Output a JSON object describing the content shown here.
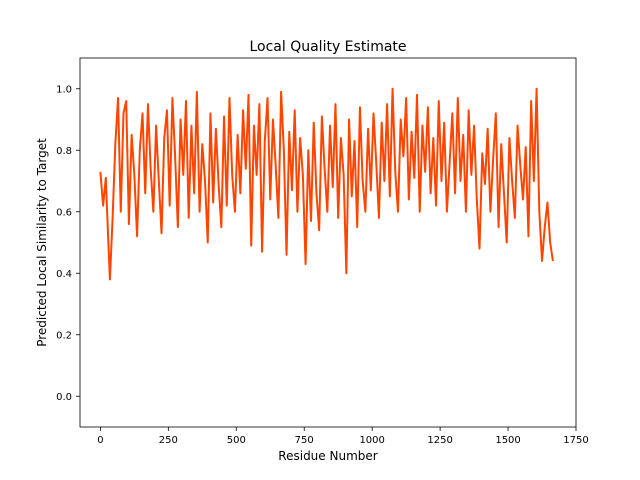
{
  "chart_data": {
    "type": "line",
    "title": "Local Quality Estimate",
    "xlabel": "Residue Number",
    "ylabel": "Predicted Local Similarity to Target",
    "xlim": [
      -75,
      1750
    ],
    "ylim": [
      -0.1,
      1.1
    ],
    "xticks": [
      0,
      250,
      500,
      750,
      1000,
      1250,
      1500,
      1750
    ],
    "xtick_labels": [
      "0",
      "250",
      "500",
      "750",
      "1000",
      "1250",
      "1500",
      "1750"
    ],
    "yticks": [
      0.0,
      0.2,
      0.4,
      0.6,
      0.8,
      1.0
    ],
    "ytick_labels": [
      "0.0",
      "0.2",
      "0.4",
      "0.6",
      "0.8",
      "1.0"
    ],
    "grid": false,
    "legend": "none",
    "color": "#ff4500",
    "series": [
      {
        "x": [
          0,
          10,
          20,
          28,
          35,
          45,
          55,
          65,
          75,
          85,
          95,
          105,
          115,
          125,
          135,
          145,
          155,
          165,
          175,
          185,
          195,
          205,
          215,
          225,
          235,
          245,
          255,
          265,
          275,
          285,
          295,
          305,
          315,
          325,
          335,
          345,
          355,
          365,
          375,
          385,
          395,
          405,
          415,
          425,
          435,
          445,
          455,
          465,
          475,
          485,
          495,
          505,
          515,
          525,
          535,
          545,
          555,
          565,
          575,
          585,
          595,
          605,
          615,
          625,
          635,
          645,
          655,
          665,
          675,
          685,
          695,
          705,
          715,
          725,
          735,
          745,
          755,
          765,
          775,
          785,
          795,
          805,
          815,
          825,
          835,
          845,
          855,
          865,
          875,
          885,
          895,
          905,
          915,
          925,
          935,
          945,
          955,
          965,
          975,
          985,
          995,
          1005,
          1015,
          1025,
          1035,
          1045,
          1055,
          1065,
          1075,
          1085,
          1095,
          1105,
          1115,
          1125,
          1135,
          1145,
          1155,
          1165,
          1175,
          1185,
          1195,
          1205,
          1215,
          1225,
          1235,
          1245,
          1255,
          1265,
          1275,
          1285,
          1295,
          1305,
          1315,
          1325,
          1335,
          1345,
          1355,
          1365,
          1375,
          1385,
          1395,
          1405,
          1415,
          1425,
          1435,
          1445,
          1455,
          1465,
          1475,
          1485,
          1495,
          1505,
          1515,
          1525,
          1535,
          1545,
          1555,
          1565,
          1575,
          1585,
          1595,
          1605,
          1615,
          1625,
          1635,
          1645,
          1655,
          1665
        ],
        "y": [
          0.73,
          0.62,
          0.71,
          0.53,
          0.38,
          0.58,
          0.82,
          0.97,
          0.6,
          0.92,
          0.96,
          0.56,
          0.85,
          0.72,
          0.52,
          0.8,
          0.92,
          0.66,
          0.95,
          0.74,
          0.6,
          0.88,
          0.7,
          0.53,
          0.84,
          0.93,
          0.62,
          0.97,
          0.78,
          0.55,
          0.9,
          0.72,
          0.96,
          0.58,
          0.88,
          0.66,
          0.99,
          0.6,
          0.82,
          0.7,
          0.5,
          0.92,
          0.63,
          0.87,
          0.69,
          0.55,
          0.91,
          0.62,
          0.97,
          0.72,
          0.6,
          0.85,
          0.66,
          0.93,
          0.74,
          0.98,
          0.49,
          0.88,
          0.72,
          0.95,
          0.47,
          0.83,
          0.97,
          0.64,
          0.9,
          0.75,
          0.58,
          0.99,
          0.8,
          0.46,
          0.86,
          0.67,
          0.93,
          0.6,
          0.84,
          0.72,
          0.43,
          0.8,
          0.57,
          0.89,
          0.66,
          0.54,
          0.91,
          0.74,
          0.6,
          0.88,
          0.68,
          0.95,
          0.58,
          0.84,
          0.72,
          0.4,
          0.9,
          0.65,
          0.83,
          0.55,
          0.94,
          0.7,
          0.6,
          0.87,
          0.67,
          0.92,
          0.76,
          0.58,
          0.89,
          0.7,
          0.95,
          0.65,
          1.0,
          0.73,
          0.6,
          0.9,
          0.78,
          0.97,
          0.64,
          0.86,
          0.71,
          0.98,
          0.6,
          0.88,
          0.73,
          0.94,
          0.66,
          0.84,
          0.62,
          0.96,
          0.7,
          0.89,
          0.6,
          0.76,
          0.92,
          0.66,
          0.97,
          0.7,
          0.85,
          0.6,
          0.93,
          0.72,
          0.88,
          0.64,
          0.48,
          0.79,
          0.69,
          0.87,
          0.6,
          0.77,
          0.92,
          0.55,
          0.82,
          0.66,
          0.5,
          0.84,
          0.7,
          0.58,
          0.88,
          0.75,
          0.64,
          0.81,
          0.52,
          0.96,
          0.7,
          1.0,
          0.6,
          0.44,
          0.55,
          0.63,
          0.5,
          0.44
        ]
      }
    ]
  }
}
